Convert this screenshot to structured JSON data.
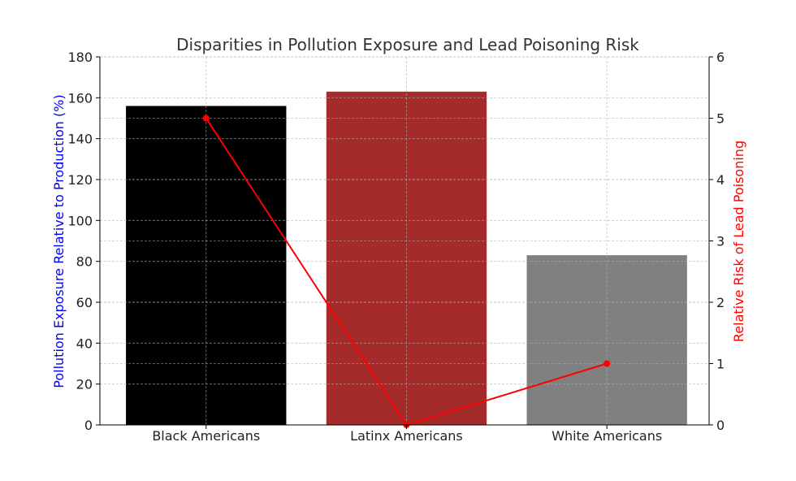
{
  "chart_data": {
    "type": "bar",
    "title": "Disparities in Pollution Exposure and Lead Poisoning Risk",
    "categories": [
      "Black Americans",
      "Latinx Americans",
      "White Americans"
    ],
    "series": [
      {
        "name": "Pollution Exposure Relative to Production (%)",
        "type": "bar",
        "axis": "left",
        "values": [
          156,
          163,
          83
        ],
        "colors": [
          "#000000",
          "#a52a2a",
          "#808080"
        ]
      },
      {
        "name": "Relative Risk of Lead Poisoning",
        "type": "line",
        "axis": "right",
        "values": [
          5,
          0,
          1
        ],
        "color": "#ff0000"
      }
    ],
    "ylabel": "Pollution Exposure Relative to Production (%)",
    "ylabel_color": "#0000ff",
    "y2label": "Relative Risk of Lead Poisoning",
    "y2label_color": "#ff0000",
    "ylim": [
      0,
      180
    ],
    "yticks": [
      0,
      20,
      40,
      60,
      80,
      100,
      120,
      140,
      160,
      180
    ],
    "y2lim": [
      0,
      6
    ],
    "y2ticks": [
      0,
      1,
      2,
      3,
      4,
      5,
      6
    ],
    "grid": true
  }
}
